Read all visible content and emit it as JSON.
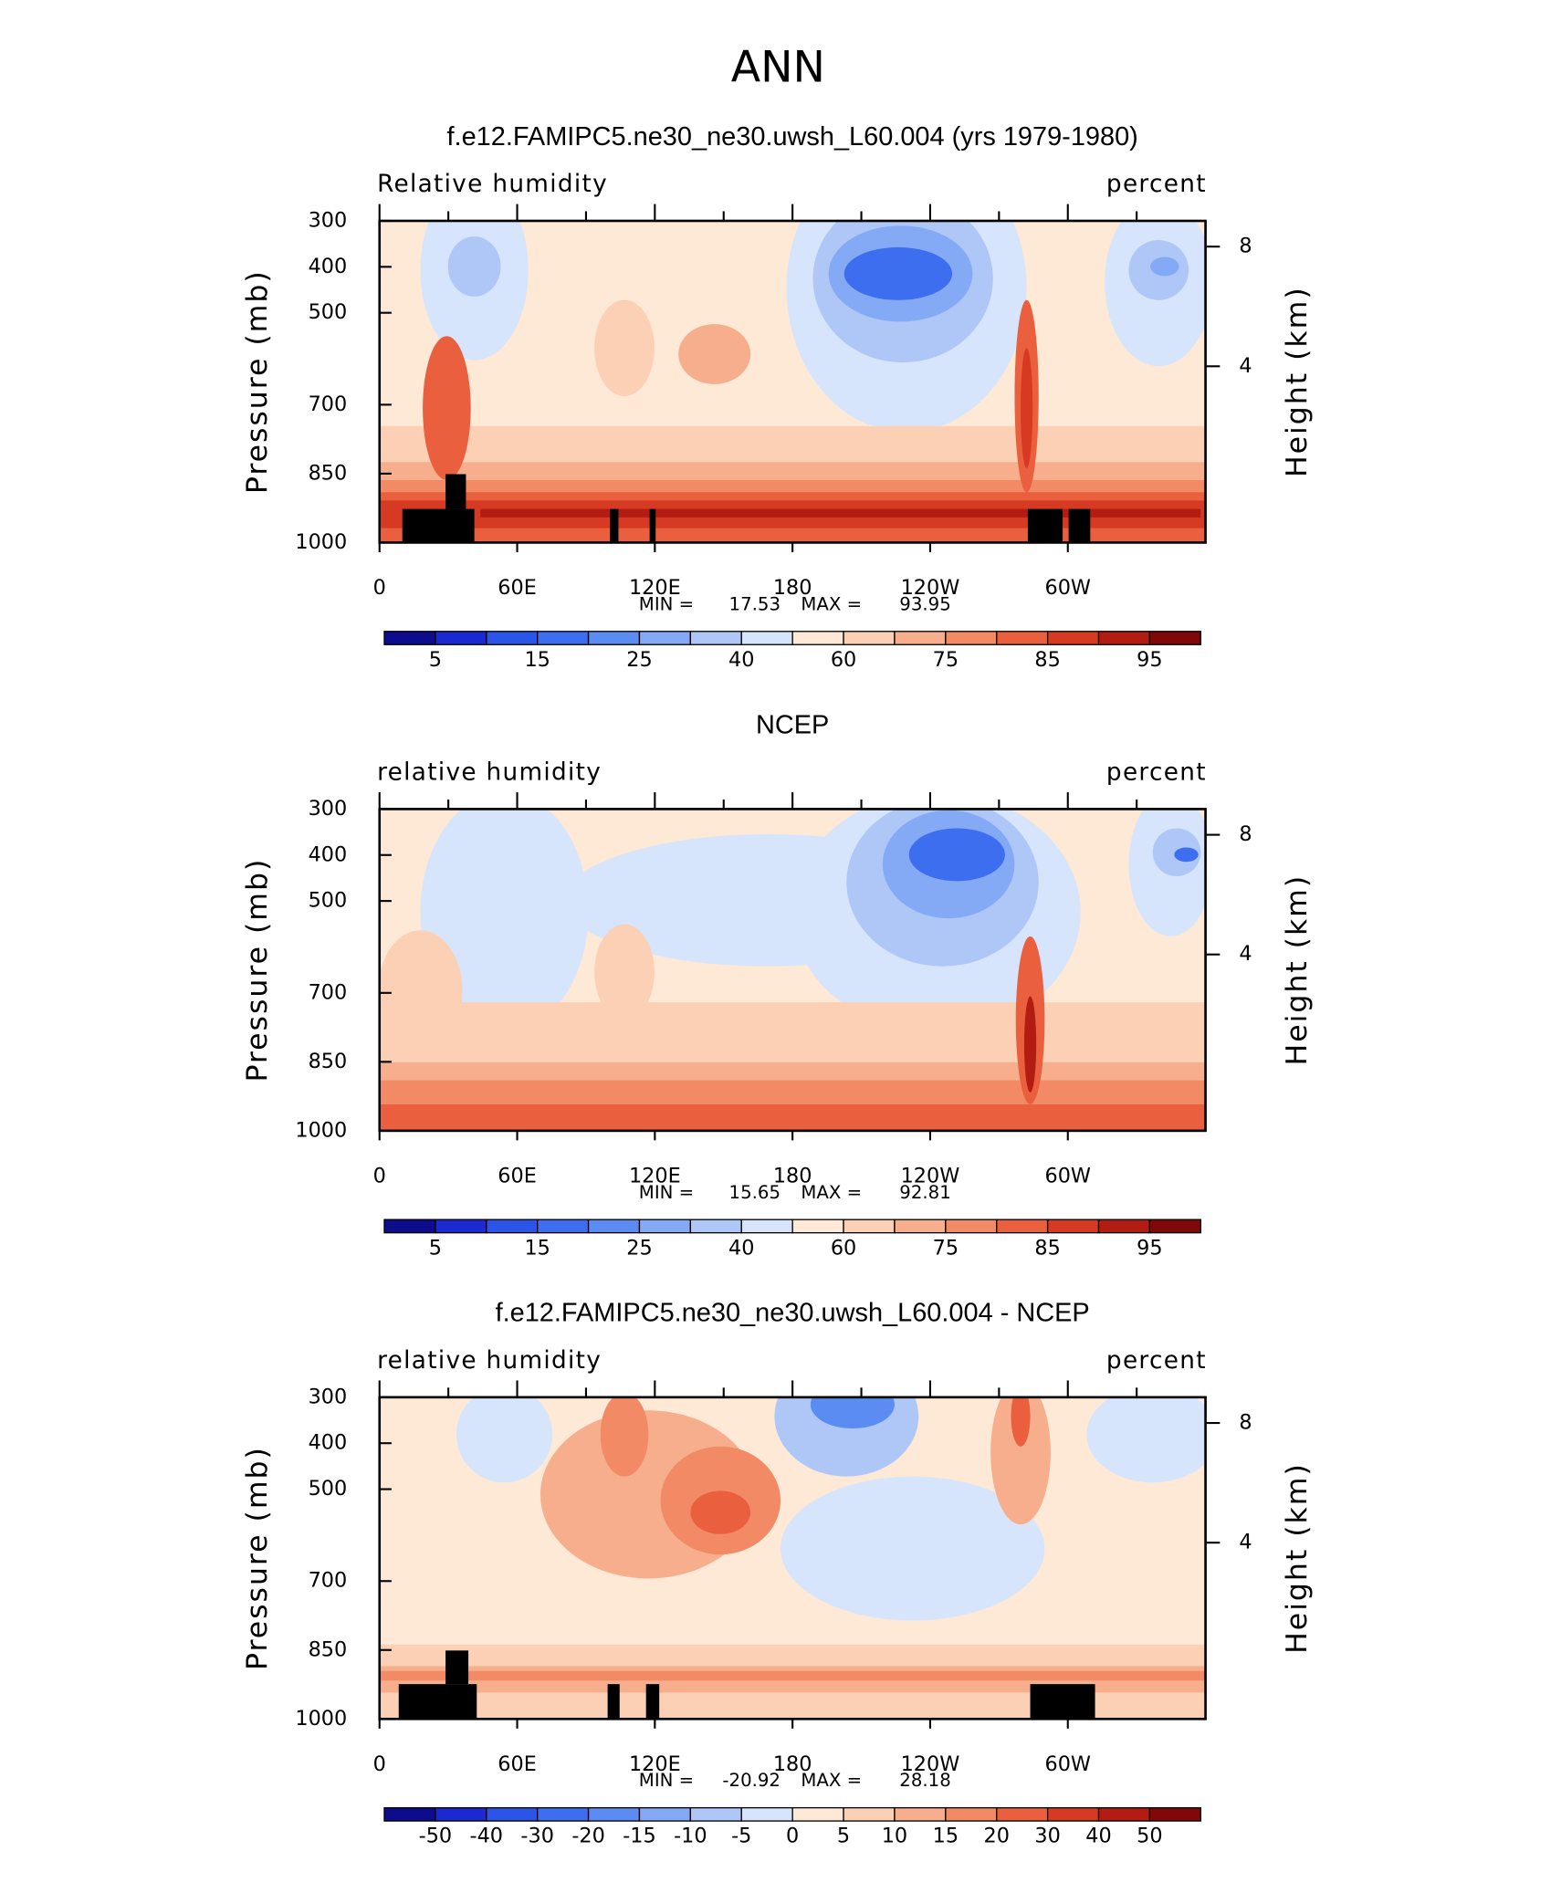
{
  "title": "ANN",
  "chart_data": [
    {
      "type": "contour",
      "title": "f.e12.FAMIPC5.ne30_ne30.uwsh_L60.004 (yrs 1979-1980)",
      "left_label": "Relative humidity",
      "right_label": "percent",
      "y_label": "Pressure (mb)",
      "y2_label": "Height (km)",
      "ylim": [
        1000,
        300
      ],
      "yticks": [
        300,
        400,
        500,
        700,
        850,
        1000
      ],
      "y2ticks": [
        8,
        4
      ],
      "xlim": [
        0,
        360
      ],
      "xticks": [
        0,
        {
          "value": 60,
          "label": "60E"
        },
        {
          "value": 120,
          "label": "120E"
        },
        180,
        {
          "value": 240,
          "label": "120W"
        },
        {
          "value": 300,
          "label": "60W"
        }
      ],
      "min_label": "MIN =",
      "min": 17.53,
      "max_label": "MAX =",
      "max": 93.95,
      "colorbar": {
        "labels": [
          5,
          15,
          25,
          40,
          60,
          75,
          85,
          95
        ],
        "colors": [
          "#0c0c8c",
          "#1a2ad0",
          "#2b55e6",
          "#3d6ef0",
          "#5b8cf2",
          "#85aaf5",
          "#aec7f7",
          "#d6e5fb",
          "#fde9d6",
          "#fbd0b5",
          "#f7ae8c",
          "#f28a66",
          "#ea5f3e",
          "#d63a22",
          "#b21c12",
          "#800808"
        ]
      }
    },
    {
      "type": "contour",
      "title": "NCEP",
      "left_label": "relative humidity",
      "right_label": "percent",
      "y_label": "Pressure (mb)",
      "y2_label": "Height (km)",
      "ylim": [
        1000,
        300
      ],
      "yticks": [
        300,
        400,
        500,
        700,
        850,
        1000
      ],
      "y2ticks": [
        8,
        4
      ],
      "xlim": [
        0,
        360
      ],
      "xticks": [
        0,
        {
          "value": 60,
          "label": "60E"
        },
        {
          "value": 120,
          "label": "120E"
        },
        180,
        {
          "value": 240,
          "label": "120W"
        },
        {
          "value": 300,
          "label": "60W"
        }
      ],
      "min_label": "MIN =",
      "min": 15.65,
      "max_label": "MAX =",
      "max": 92.81,
      "colorbar": {
        "labels": [
          5,
          15,
          25,
          40,
          60,
          75,
          85,
          95
        ],
        "colors": [
          "#0c0c8c",
          "#1a2ad0",
          "#2b55e6",
          "#3d6ef0",
          "#5b8cf2",
          "#85aaf5",
          "#aec7f7",
          "#d6e5fb",
          "#fde9d6",
          "#fbd0b5",
          "#f7ae8c",
          "#f28a66",
          "#ea5f3e",
          "#d63a22",
          "#b21c12",
          "#800808"
        ]
      }
    },
    {
      "type": "contour",
      "title": "f.e12.FAMIPC5.ne30_ne30.uwsh_L60.004 - NCEP",
      "left_label": "relative humidity",
      "right_label": "percent",
      "y_label": "Pressure (mb)",
      "y2_label": "Height (km)",
      "ylim": [
        1000,
        300
      ],
      "yticks": [
        300,
        400,
        500,
        700,
        850,
        1000
      ],
      "y2ticks": [
        8,
        4
      ],
      "xlim": [
        0,
        360
      ],
      "xticks": [
        0,
        {
          "value": 60,
          "label": "60E"
        },
        {
          "value": 120,
          "label": "120E"
        },
        180,
        {
          "value": 240,
          "label": "120W"
        },
        {
          "value": 300,
          "label": "60W"
        }
      ],
      "min_label": "MIN =",
      "min": -20.92,
      "max_label": "MAX =",
      "max": 28.18,
      "colorbar": {
        "labels": [
          -50,
          -40,
          -30,
          -20,
          -15,
          -10,
          -5,
          0,
          5,
          10,
          15,
          20,
          30,
          40,
          50
        ],
        "colors": [
          "#0c0c8c",
          "#1a2ad0",
          "#2b55e6",
          "#3d6ef0",
          "#5b8cf2",
          "#85aaf5",
          "#aec7f7",
          "#d6e5fb",
          "#fde9d6",
          "#fbd0b5",
          "#f7ae8c",
          "#f28a66",
          "#ea5f3e",
          "#d63a22",
          "#b21c12",
          "#800808"
        ]
      }
    }
  ]
}
